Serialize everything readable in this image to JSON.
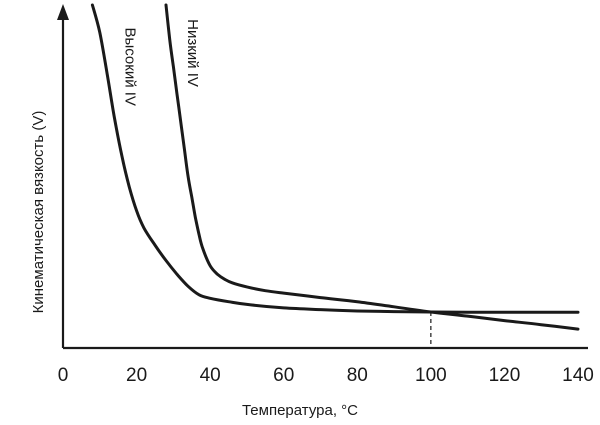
{
  "chart_data": {
    "type": "line",
    "title": "",
    "xlabel": "Температура, °C",
    "ylabel": "Кинематическая вязкость (V)",
    "xlim": [
      0,
      140
    ],
    "ylim": [
      0,
      10
    ],
    "x_ticks": [
      "0",
      "20",
      "40",
      "60",
      "80",
      "100",
      "120",
      "140"
    ],
    "x_tick_values": [
      0,
      20,
      40,
      60,
      80,
      100,
      120,
      140
    ],
    "y_ticks": [],
    "grid": false,
    "series": [
      {
        "name": "Высокий IV",
        "label_anchor": [
          17,
          8.2
        ],
        "x": [
          8,
          10,
          12,
          14,
          16,
          18,
          20,
          22,
          25,
          28,
          31,
          34,
          37,
          40,
          45,
          50,
          60,
          70,
          80,
          90,
          100,
          110,
          120,
          130,
          140
        ],
        "y": [
          10,
          9.2,
          8.0,
          6.7,
          5.6,
          4.7,
          4.0,
          3.5,
          3.0,
          2.55,
          2.15,
          1.8,
          1.55,
          1.45,
          1.35,
          1.27,
          1.17,
          1.12,
          1.08,
          1.06,
          1.05,
          1.04,
          1.04,
          1.04,
          1.04
        ]
      },
      {
        "name": "Низкий IV",
        "label_anchor": [
          34,
          8.6
        ],
        "x": [
          28,
          29,
          30,
          31,
          32,
          33,
          34,
          35,
          36,
          37,
          38,
          40,
          42,
          44,
          46,
          50,
          55,
          60,
          70,
          80,
          90,
          100,
          110,
          120,
          130,
          140
        ],
        "y": [
          10,
          9.0,
          8.2,
          7.4,
          6.6,
          5.8,
          5.0,
          4.4,
          3.8,
          3.3,
          2.9,
          2.4,
          2.15,
          2.0,
          1.9,
          1.78,
          1.67,
          1.6,
          1.47,
          1.35,
          1.2,
          1.05,
          0.93,
          0.8,
          0.68,
          0.55
        ]
      }
    ],
    "crossing_marker": {
      "x": 100,
      "y": 1.05,
      "style": "dashed"
    }
  }
}
